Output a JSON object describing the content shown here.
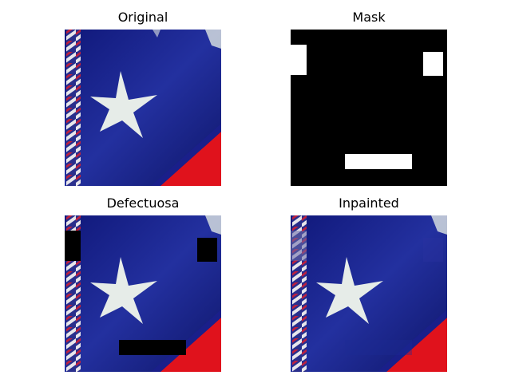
{
  "panels": [
    {
      "id": "original",
      "title": "Original"
    },
    {
      "id": "mask",
      "title": "Mask"
    },
    {
      "id": "defective",
      "title": "Defectuosa"
    },
    {
      "id": "inpainted",
      "title": "Inpainted"
    }
  ],
  "colors": {
    "field_blue": "#1c2a9a",
    "field_blue_dark": "#0e1566",
    "stripe_red": "#e0121c",
    "star_white": "#e6ece8",
    "rope_white": "#f2f0f0",
    "rope_red": "#c8203a",
    "mask_black": "#000000",
    "mask_white": "#ffffff"
  }
}
